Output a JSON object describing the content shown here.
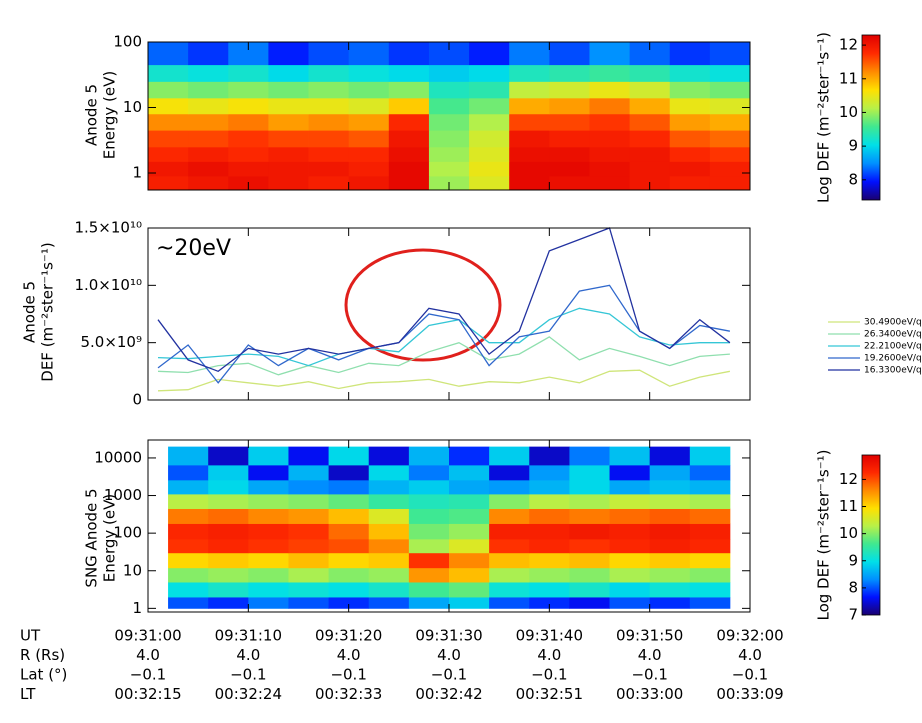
{
  "chart_data": [
    {
      "type": "heatmap",
      "ylabel": [
        "Anode 5",
        "Energy (eV)"
      ],
      "xlim": [
        "09:31:00",
        "09:32:00"
      ],
      "xticks": [
        "09:31:00",
        "09:31:10",
        "09:31:20",
        "09:31:30",
        "09:31:40",
        "09:31:50",
        "09:32:00"
      ],
      "ylim": [
        0.55,
        100
      ],
      "log_y": true,
      "yticks": [
        1,
        10,
        100
      ],
      "x_edges": [
        "09:31:00",
        "09:31:04",
        "09:31:08",
        "09:31:12",
        "09:31:16",
        "09:31:20",
        "09:31:24",
        "09:31:28",
        "09:31:32",
        "09:31:36",
        "09:31:40",
        "09:31:44",
        "09:31:48",
        "09:31:52",
        "09:31:56",
        "09:32:00"
      ],
      "y_edges": [
        0.55,
        0.9,
        1.5,
        2.5,
        4.5,
        8,
        14,
        25,
        45,
        100
      ],
      "z": [
        [
          11.9,
          12.0,
          12.1,
          12.0,
          11.9,
          12.0,
          12.2,
          10.0,
          10.4,
          12.2,
          12.1,
          12.1,
          12.0,
          11.9,
          11.9
        ],
        [
          12.0,
          12.1,
          12.0,
          12.0,
          12.0,
          11.9,
          12.2,
          10.1,
          10.5,
          12.2,
          12.2,
          12.1,
          12.0,
          12.0,
          11.9
        ],
        [
          11.8,
          11.9,
          11.8,
          11.9,
          11.8,
          11.8,
          12.1,
          10.0,
          10.4,
          12.1,
          12.1,
          12.0,
          12.0,
          11.8,
          11.7
        ],
        [
          11.6,
          11.6,
          11.7,
          11.6,
          11.6,
          11.5,
          12.0,
          9.9,
          10.3,
          12.0,
          11.9,
          11.9,
          11.8,
          11.5,
          11.4
        ],
        [
          11.2,
          11.2,
          11.3,
          11.1,
          11.2,
          11.1,
          11.8,
          9.8,
          10.1,
          11.6,
          11.6,
          11.7,
          11.5,
          11.1,
          11.0
        ],
        [
          10.6,
          10.5,
          10.6,
          10.5,
          10.5,
          10.4,
          10.8,
          9.6,
          9.8,
          11.0,
          11.1,
          11.3,
          11.0,
          10.5,
          10.4
        ],
        [
          9.9,
          9.8,
          9.9,
          9.8,
          9.9,
          9.8,
          9.9,
          9.3,
          9.4,
          10.2,
          10.3,
          10.5,
          10.3,
          9.9,
          9.8
        ],
        [
          9.2,
          9.1,
          9.2,
          9.0,
          9.2,
          9.1,
          9.0,
          8.9,
          9.0,
          9.3,
          9.4,
          9.5,
          9.4,
          9.2,
          9.1
        ],
        [
          8.3,
          8.1,
          8.4,
          8.0,
          8.2,
          8.3,
          8.1,
          8.2,
          8.0,
          8.4,
          8.2,
          8.5,
          8.3,
          8.1,
          8.2
        ]
      ],
      "colormap": [
        "#1a0070",
        "#0010ff",
        "#0090ff",
        "#00e0e8",
        "#40e890",
        "#b8f048",
        "#ffe000",
        "#ff8a00",
        "#ff2a00",
        "#e00000"
      ],
      "colorbar": {
        "label": "Log DEF (m⁻²ster⁻¹s⁻¹)",
        "clim": [
          7.4,
          12.3
        ],
        "ticks": [
          8,
          9,
          10,
          11,
          12
        ]
      }
    },
    {
      "type": "line",
      "ylabel": [
        "Anode 5",
        "DEF (m⁻²ster⁻¹s⁻¹)"
      ],
      "annotation": "~20eV",
      "xlim": [
        "09:31:00",
        "09:32:00"
      ],
      "xticks": [
        "09:31:00",
        "09:31:10",
        "09:31:20",
        "09:31:30",
        "09:31:40",
        "09:31:50",
        "09:32:00"
      ],
      "ylim": [
        0,
        15000000000.0
      ],
      "yticks": [
        0,
        {
          "value": 5000000000.0,
          "label": "5.0×10⁹"
        },
        {
          "value": 10000000000.0,
          "label": "1.0×10¹⁰"
        },
        {
          "value": 15000000000.0,
          "label": "1.5×10¹⁰"
        }
      ],
      "x": [
        "09:31:01",
        "09:31:04",
        "09:31:07",
        "09:31:10",
        "09:31:13",
        "09:31:16",
        "09:31:19",
        "09:31:22",
        "09:31:25",
        "09:31:28",
        "09:31:31",
        "09:31:34",
        "09:31:37",
        "09:31:40",
        "09:31:43",
        "09:31:46",
        "09:31:49",
        "09:31:52",
        "09:31:55",
        "09:31:58"
      ],
      "series": [
        {
          "name": "30.4900eV/q",
          "color": "#cfe57a",
          "values": [
            800000000.0,
            900000000.0,
            1800000000.0,
            1500000000.0,
            1200000000.0,
            1600000000.0,
            1000000000.0,
            1500000000.0,
            1600000000.0,
            1800000000.0,
            1200000000.0,
            1600000000.0,
            1500000000.0,
            2000000000.0,
            1500000000.0,
            2500000000.0,
            2600000000.0,
            1200000000.0,
            2000000000.0,
            2500000000.0
          ]
        },
        {
          "name": "26.3400eV/q",
          "color": "#8fdfae",
          "values": [
            2500000000.0,
            2400000000.0,
            3000000000.0,
            3200000000.0,
            2200000000.0,
            3000000000.0,
            2400000000.0,
            3200000000.0,
            3000000000.0,
            4200000000.0,
            5000000000.0,
            3500000000.0,
            4000000000.0,
            5500000000.0,
            3500000000.0,
            4500000000.0,
            3800000000.0,
            3000000000.0,
            3800000000.0,
            4000000000.0
          ]
        },
        {
          "name": "22.2100eV/q",
          "color": "#35c6d6",
          "values": [
            3700000000.0,
            3600000000.0,
            3800000000.0,
            4000000000.0,
            3800000000.0,
            3000000000.0,
            4000000000.0,
            4500000000.0,
            4200000000.0,
            6500000000.0,
            7000000000.0,
            5000000000.0,
            5000000000.0,
            7000000000.0,
            8000000000.0,
            7500000000.0,
            5500000000.0,
            4800000000.0,
            5000000000.0,
            5000000000.0
          ]
        },
        {
          "name": "19.2600eV/q",
          "color": "#3068cc",
          "values": [
            2800000000.0,
            4800000000.0,
            1500000000.0,
            4800000000.0,
            3000000000.0,
            4500000000.0,
            3500000000.0,
            4500000000.0,
            5000000000.0,
            7500000000.0,
            7000000000.0,
            3000000000.0,
            5500000000.0,
            6000000000.0,
            9500000000.0,
            10000000000.0,
            6000000000.0,
            4500000000.0,
            6500000000.0,
            6000000000.0
          ]
        },
        {
          "name": "16.3300eV/q",
          "color": "#2232a0",
          "values": [
            7000000000.0,
            3500000000.0,
            2500000000.0,
            4500000000.0,
            4000000000.0,
            4500000000.0,
            4000000000.0,
            4500000000.0,
            5000000000.0,
            8000000000.0,
            7500000000.0,
            4000000000.0,
            6000000000.0,
            13000000000.0,
            14000000000.0,
            15000000000.0,
            6000000000.0,
            4500000000.0,
            7000000000.0,
            5000000000.0
          ]
        }
      ]
    },
    {
      "type": "heatmap",
      "ylabel": [
        "SNG Anode 5",
        "Energy (eV)"
      ],
      "xlim": [
        "09:31:00",
        "09:32:00"
      ],
      "xticks": [
        "09:31:00",
        "09:31:10",
        "09:31:20",
        "09:31:30",
        "09:31:40",
        "09:31:50",
        "09:32:00"
      ],
      "ylim": [
        0.8,
        30000
      ],
      "log_y": true,
      "yticks": [
        1,
        10,
        100,
        1000,
        10000
      ],
      "x_edges": [
        "09:31:02",
        "09:31:06",
        "09:31:10",
        "09:31:14",
        "09:31:18",
        "09:31:22",
        "09:31:26",
        "09:31:30",
        "09:31:34",
        "09:31:38",
        "09:31:42",
        "09:31:46",
        "09:31:50",
        "09:31:54",
        "09:31:58"
      ],
      "y_edges": [
        1,
        2,
        5,
        12,
        30,
        70,
        180,
        450,
        1100,
        2600,
        6500,
        20000
      ],
      "z": [
        [
          8.0,
          7.8,
          8.2,
          8.0,
          7.8,
          8.0,
          8.5,
          8.8,
          8.0,
          7.8,
          7.6,
          8.0,
          7.8,
          8.0
        ],
        [
          9.0,
          9.2,
          9.0,
          9.1,
          9.0,
          9.2,
          9.6,
          9.8,
          9.1,
          9.0,
          9.2,
          8.9,
          9.1,
          9.0
        ],
        [
          10.0,
          10.1,
          10.0,
          10.2,
          10.0,
          10.1,
          11.5,
          11.2,
          10.2,
          10.1,
          10.0,
          10.2,
          10.1,
          10.0
        ],
        [
          11.0,
          11.1,
          11.0,
          11.2,
          11.0,
          11.1,
          12.2,
          11.6,
          11.2,
          11.1,
          11.2,
          11.0,
          11.1,
          11.0
        ],
        [
          12.2,
          12.3,
          12.2,
          12.1,
          12.0,
          11.6,
          10.2,
          10.6,
          12.2,
          12.3,
          12.2,
          12.3,
          12.4,
          12.3
        ],
        [
          12.3,
          12.4,
          12.3,
          12.2,
          11.8,
          11.2,
          9.9,
          10.1,
          12.4,
          12.4,
          12.5,
          12.4,
          12.5,
          12.4
        ],
        [
          11.7,
          11.8,
          11.6,
          11.5,
          11.2,
          10.6,
          9.6,
          9.7,
          11.6,
          11.8,
          11.7,
          11.8,
          11.9,
          11.8
        ],
        [
          10.3,
          10.2,
          10.1,
          10.0,
          9.8,
          9.5,
          9.3,
          9.4,
          10.0,
          10.3,
          10.2,
          10.4,
          10.3,
          10.2
        ],
        [
          8.6,
          8.9,
          8.5,
          8.3,
          8.2,
          8.6,
          8.8,
          8.5,
          8.4,
          8.6,
          8.9,
          8.5,
          8.7,
          8.6
        ],
        [
          8.0,
          8.8,
          7.6,
          8.6,
          7.4,
          8.9,
          8.2,
          8.7,
          7.5,
          8.4,
          8.9,
          7.6,
          8.5,
          8.1
        ],
        [
          8.6,
          7.4,
          8.8,
          7.6,
          8.9,
          7.5,
          8.6,
          7.8,
          8.8,
          7.4,
          8.2,
          8.7,
          7.5,
          8.8
        ]
      ],
      "colormap": [
        "#1a0070",
        "#0010ff",
        "#0090ff",
        "#00e0e8",
        "#40e890",
        "#b8f048",
        "#ffe000",
        "#ff8a00",
        "#ff2a00",
        "#e00000"
      ],
      "colorbar": {
        "label": "Log DEF (m⁻²ster⁻¹s⁻¹)",
        "clim": [
          7,
          12.9
        ],
        "ticks": [
          7,
          8,
          9,
          10,
          11,
          12
        ]
      }
    }
  ],
  "ephemeris": {
    "rows": [
      {
        "label": "UT"
      },
      {
        "label": "R (Rs)",
        "values": [
          "4.0",
          "4.0",
          "4.0",
          "4.0",
          "4.0",
          "4.0",
          "4.0"
        ]
      },
      {
        "label": "Lat (°)",
        "values": [
          "−0.1",
          "−0.1",
          "−0.1",
          "−0.1",
          "−0.1",
          "−0.1",
          "−0.1"
        ]
      },
      {
        "label": "LT",
        "values": [
          "00:32:15",
          "00:32:24",
          "00:32:33",
          "00:32:42",
          "00:32:51",
          "00:33:00",
          "00:33:09"
        ]
      }
    ]
  }
}
